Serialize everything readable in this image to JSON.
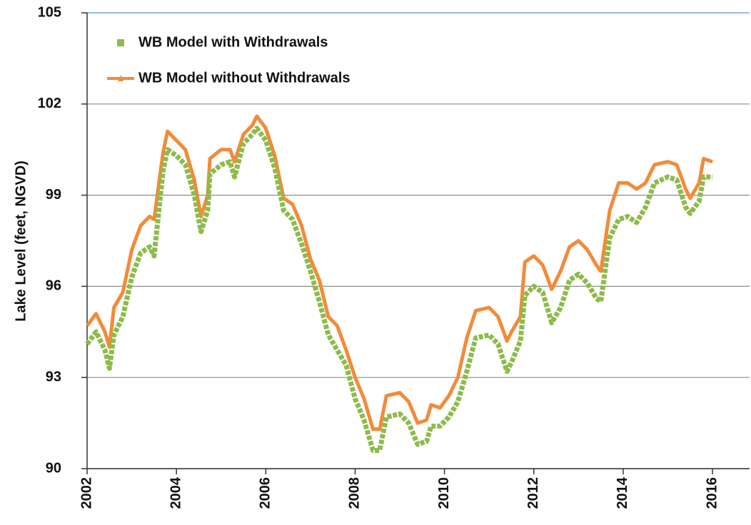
{
  "chart_data": {
    "type": "line",
    "y_label": "Lake Level (feet, NGVD)",
    "x": [
      2002.0,
      2002.2,
      2002.4,
      2002.5,
      2002.6,
      2002.8,
      2003.0,
      2003.2,
      2003.4,
      2003.5,
      2003.7,
      2003.8,
      2004.0,
      2004.2,
      2004.4,
      2004.55,
      2004.7,
      2004.75,
      2005.0,
      2005.2,
      2005.3,
      2005.5,
      2005.7,
      2005.8,
      2006.0,
      2006.2,
      2006.4,
      2006.6,
      2006.8,
      2007.0,
      2007.2,
      2007.4,
      2007.6,
      2007.8,
      2008.0,
      2008.2,
      2008.4,
      2008.55,
      2008.7,
      2009.0,
      2009.2,
      2009.4,
      2009.6,
      2009.7,
      2009.9,
      2010.1,
      2010.3,
      2010.5,
      2010.7,
      2011.0,
      2011.2,
      2011.4,
      2011.5,
      2011.7,
      2011.8,
      2012.0,
      2012.2,
      2012.4,
      2012.6,
      2012.8,
      2013.0,
      2013.2,
      2013.4,
      2013.5,
      2013.7,
      2013.9,
      2014.1,
      2014.3,
      2014.5,
      2014.7,
      2015.0,
      2015.2,
      2015.4,
      2015.5,
      2015.7,
      2015.8,
      2016.0
    ],
    "series": [
      {
        "name": "WB Model without Withdrawals",
        "color": "#f28b3a",
        "values": [
          94.7,
          95.1,
          94.5,
          94.0,
          95.3,
          95.8,
          97.2,
          98.0,
          98.3,
          98.2,
          100.4,
          101.1,
          100.8,
          100.5,
          99.5,
          98.3,
          99.0,
          100.2,
          100.5,
          100.5,
          100.1,
          101.0,
          101.3,
          101.6,
          101.2,
          100.3,
          98.9,
          98.7,
          98.0,
          96.9,
          96.2,
          95.0,
          94.7,
          93.9,
          93.0,
          92.3,
          91.3,
          91.3,
          92.4,
          92.5,
          92.2,
          91.5,
          91.6,
          92.1,
          92.0,
          92.4,
          93.0,
          94.3,
          95.2,
          95.3,
          95.0,
          94.2,
          94.5,
          95.0,
          96.8,
          97.0,
          96.7,
          95.9,
          96.5,
          97.3,
          97.5,
          97.2,
          96.7,
          96.5,
          98.5,
          99.4,
          99.4,
          99.2,
          99.4,
          100.0,
          100.1,
          100.0,
          99.2,
          98.9,
          99.4,
          100.2,
          100.1
        ]
      },
      {
        "name": "WB Model with Withdrawals",
        "color": "#8dbb4c",
        "values": [
          94.1,
          94.5,
          93.9,
          93.3,
          94.4,
          95.0,
          96.3,
          97.1,
          97.3,
          97.0,
          99.8,
          100.5,
          100.3,
          100.0,
          99.0,
          97.8,
          98.5,
          99.7,
          100.0,
          100.1,
          99.6,
          100.7,
          101.0,
          101.2,
          100.8,
          99.9,
          98.5,
          98.2,
          97.4,
          96.5,
          95.5,
          94.4,
          93.9,
          93.4,
          92.3,
          91.6,
          90.6,
          90.6,
          91.7,
          91.8,
          91.5,
          90.8,
          90.9,
          91.4,
          91.4,
          91.7,
          92.2,
          93.2,
          94.3,
          94.4,
          94.1,
          93.2,
          93.5,
          94.2,
          95.7,
          96.0,
          95.8,
          94.8,
          95.3,
          96.2,
          96.4,
          96.1,
          95.6,
          95.5,
          97.6,
          98.2,
          98.3,
          98.1,
          98.6,
          99.4,
          99.6,
          99.5,
          98.6,
          98.4,
          98.8,
          99.6,
          99.6
        ]
      }
    ],
    "xlim": [
      2002,
      2016.83
    ],
    "xticks": [
      2002,
      2004,
      2006,
      2008,
      2010,
      2012,
      2014,
      2016
    ],
    "ylim": [
      90,
      105
    ],
    "yticks": [
      90,
      93,
      96,
      99,
      102,
      105
    ],
    "grid": true,
    "legend": "upper left"
  }
}
